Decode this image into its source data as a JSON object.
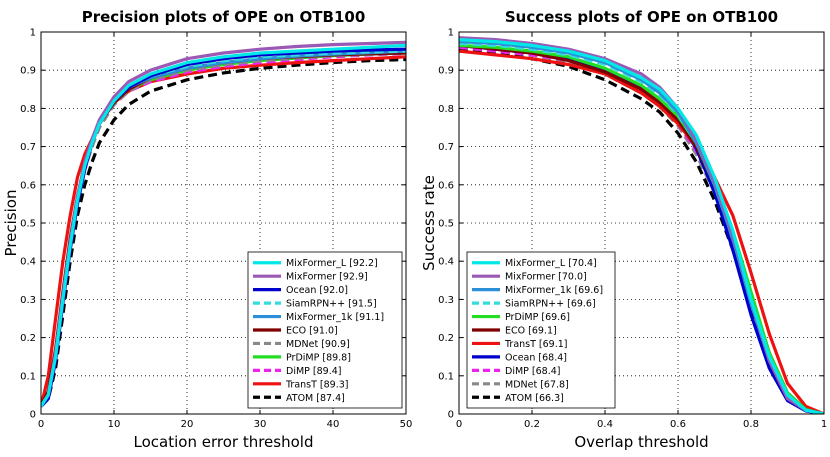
{
  "chart_data": [
    {
      "type": "line",
      "title": "Precision plots of OPE on OTB100",
      "xlabel": "Location error threshold",
      "ylabel": "Precision",
      "xlim": [
        0,
        50
      ],
      "ylim": [
        0,
        1
      ],
      "grid": true,
      "legend_position": "bottom-right",
      "xticks": [
        0,
        10,
        20,
        30,
        40,
        50
      ],
      "xtick_labels": [
        "0",
        "10",
        "20",
        "30",
        "40",
        "50"
      ],
      "yticks": [
        0,
        0.1,
        0.2,
        0.3,
        0.4,
        0.5,
        0.6,
        0.7,
        0.8,
        0.9,
        1
      ],
      "ytick_labels": [
        "0",
        "0.1",
        "0.2",
        "0.3",
        "0.4",
        "0.5",
        "0.6",
        "0.7",
        "0.8",
        "0.9",
        "1"
      ],
      "x": [
        0,
        1,
        2,
        3,
        4,
        5,
        6,
        7,
        8,
        10,
        12,
        15,
        20,
        25,
        30,
        35,
        40,
        45,
        50
      ],
      "series": [
        {
          "name": "MixFormer_L [92.2]",
          "color": "#00e8e8",
          "dash": "solid",
          "values": [
            0.02,
            0.05,
            0.15,
            0.3,
            0.44,
            0.56,
            0.65,
            0.71,
            0.76,
            0.82,
            0.86,
            0.89,
            0.92,
            0.935,
            0.945,
            0.95,
            0.955,
            0.96,
            0.965
          ]
        },
        {
          "name": "MixFormer [92.9]",
          "color": "#9b59b6",
          "dash": "solid",
          "values": [
            0.02,
            0.05,
            0.16,
            0.31,
            0.45,
            0.57,
            0.66,
            0.72,
            0.77,
            0.83,
            0.87,
            0.9,
            0.93,
            0.945,
            0.955,
            0.962,
            0.967,
            0.97,
            0.973
          ]
        },
        {
          "name": "Ocean [92.0]",
          "color": "#0000cc",
          "dash": "solid",
          "values": [
            0.02,
            0.04,
            0.14,
            0.29,
            0.43,
            0.55,
            0.64,
            0.71,
            0.76,
            0.82,
            0.855,
            0.885,
            0.915,
            0.93,
            0.94,
            0.945,
            0.95,
            0.953,
            0.955
          ]
        },
        {
          "name": "SiamRPN++ [91.5]",
          "color": "#33dddd",
          "dash": "dash",
          "values": [
            0.02,
            0.05,
            0.15,
            0.3,
            0.44,
            0.56,
            0.65,
            0.71,
            0.76,
            0.82,
            0.855,
            0.885,
            0.91,
            0.925,
            0.935,
            0.94,
            0.945,
            0.948,
            0.95
          ]
        },
        {
          "name": "MixFormer_1k [91.1]",
          "color": "#2a8fd6",
          "dash": "solid",
          "values": [
            0.02,
            0.05,
            0.15,
            0.3,
            0.44,
            0.56,
            0.65,
            0.71,
            0.76,
            0.82,
            0.855,
            0.88,
            0.905,
            0.92,
            0.93,
            0.937,
            0.942,
            0.946,
            0.95
          ]
        },
        {
          "name": "ECO [91.0]",
          "color": "#800000",
          "dash": "solid",
          "values": [
            0.02,
            0.06,
            0.17,
            0.32,
            0.46,
            0.57,
            0.65,
            0.71,
            0.76,
            0.815,
            0.85,
            0.88,
            0.905,
            0.92,
            0.93,
            0.935,
            0.94,
            0.943,
            0.945
          ]
        },
        {
          "name": "MDNet [90.9]",
          "color": "#888888",
          "dash": "dash",
          "values": [
            0.02,
            0.05,
            0.16,
            0.31,
            0.45,
            0.56,
            0.64,
            0.7,
            0.75,
            0.81,
            0.845,
            0.875,
            0.9,
            0.915,
            0.925,
            0.932,
            0.938,
            0.942,
            0.945
          ]
        },
        {
          "name": "PrDiMP [89.8]",
          "color": "#22dd22",
          "dash": "solid",
          "values": [
            0.02,
            0.05,
            0.15,
            0.3,
            0.44,
            0.56,
            0.65,
            0.71,
            0.76,
            0.815,
            0.85,
            0.875,
            0.9,
            0.915,
            0.925,
            0.932,
            0.938,
            0.942,
            0.945
          ]
        },
        {
          "name": "DiMP [89.4]",
          "color": "#ee22ee",
          "dash": "dash",
          "values": [
            0.02,
            0.05,
            0.15,
            0.3,
            0.44,
            0.56,
            0.65,
            0.71,
            0.76,
            0.81,
            0.845,
            0.87,
            0.895,
            0.91,
            0.92,
            0.928,
            0.935,
            0.94,
            0.944
          ]
        },
        {
          "name": "TransT [89.3]",
          "color": "#ee1111",
          "dash": "solid",
          "values": [
            0.02,
            0.1,
            0.25,
            0.4,
            0.52,
            0.62,
            0.68,
            0.72,
            0.76,
            0.815,
            0.845,
            0.87,
            0.89,
            0.905,
            0.913,
            0.92,
            0.925,
            0.93,
            0.935
          ]
        },
        {
          "name": "ATOM [87.4]",
          "color": "#000000",
          "dash": "dash",
          "values": [
            0.02,
            0.04,
            0.12,
            0.26,
            0.4,
            0.52,
            0.6,
            0.66,
            0.71,
            0.77,
            0.81,
            0.845,
            0.875,
            0.893,
            0.905,
            0.913,
            0.92,
            0.925,
            0.928
          ]
        }
      ]
    },
    {
      "type": "line",
      "title": "Success plots of OPE on OTB100",
      "xlabel": "Overlap threshold",
      "ylabel": "Success rate",
      "xlim": [
        0,
        1
      ],
      "ylim": [
        0,
        1
      ],
      "grid": true,
      "legend_position": "bottom-left",
      "xticks": [
        0,
        0.2,
        0.4,
        0.6,
        0.8,
        1
      ],
      "xtick_labels": [
        "0",
        "0.2",
        "0.4",
        "0.6",
        "0.8",
        "1"
      ],
      "yticks": [
        0,
        0.1,
        0.2,
        0.3,
        0.4,
        0.5,
        0.6,
        0.7,
        0.8,
        0.9,
        1
      ],
      "ytick_labels": [
        "0",
        "0.1",
        "0.2",
        "0.3",
        "0.4",
        "0.5",
        "0.6",
        "0.7",
        "0.8",
        "0.9",
        "1"
      ],
      "x": [
        0,
        0.1,
        0.2,
        0.3,
        0.4,
        0.5,
        0.55,
        0.6,
        0.65,
        0.7,
        0.75,
        0.8,
        0.85,
        0.9,
        0.95,
        1
      ],
      "series": [
        {
          "name": "MixFormer_L [70.4]",
          "color": "#00e8e8",
          "dash": "solid",
          "values": [
            0.98,
            0.975,
            0.965,
            0.95,
            0.925,
            0.88,
            0.85,
            0.8,
            0.73,
            0.62,
            0.48,
            0.3,
            0.15,
            0.05,
            0.01,
            0
          ]
        },
        {
          "name": "MixFormer [70.0]",
          "color": "#9b59b6",
          "dash": "solid",
          "values": [
            0.985,
            0.98,
            0.97,
            0.955,
            0.93,
            0.89,
            0.855,
            0.8,
            0.72,
            0.61,
            0.47,
            0.3,
            0.14,
            0.04,
            0.01,
            0
          ]
        },
        {
          "name": "MixFormer_1k [69.6]",
          "color": "#2a8fd6",
          "dash": "solid",
          "values": [
            0.975,
            0.97,
            0.96,
            0.945,
            0.92,
            0.875,
            0.84,
            0.79,
            0.71,
            0.6,
            0.46,
            0.29,
            0.14,
            0.045,
            0.01,
            0
          ]
        },
        {
          "name": "SiamRPN++ [69.6]",
          "color": "#33dddd",
          "dash": "dash",
          "values": [
            0.97,
            0.965,
            0.955,
            0.94,
            0.915,
            0.87,
            0.835,
            0.785,
            0.71,
            0.6,
            0.46,
            0.3,
            0.15,
            0.05,
            0.01,
            0
          ]
        },
        {
          "name": "PrDiMP [69.6]",
          "color": "#22dd22",
          "dash": "solid",
          "values": [
            0.965,
            0.96,
            0.95,
            0.935,
            0.905,
            0.86,
            0.825,
            0.78,
            0.71,
            0.61,
            0.48,
            0.32,
            0.16,
            0.055,
            0.012,
            0
          ]
        },
        {
          "name": "ECO [69.1]",
          "color": "#800000",
          "dash": "solid",
          "values": [
            0.965,
            0.955,
            0.945,
            0.925,
            0.895,
            0.85,
            0.815,
            0.77,
            0.7,
            0.6,
            0.47,
            0.31,
            0.16,
            0.055,
            0.012,
            0
          ]
        },
        {
          "name": "TransT [69.1]",
          "color": "#ee1111",
          "dash": "solid",
          "values": [
            0.95,
            0.94,
            0.93,
            0.915,
            0.89,
            0.84,
            0.805,
            0.76,
            0.7,
            0.62,
            0.52,
            0.37,
            0.21,
            0.08,
            0.02,
            0
          ]
        },
        {
          "name": "Ocean [68.4]",
          "color": "#0000cc",
          "dash": "solid",
          "values": [
            0.965,
            0.955,
            0.945,
            0.93,
            0.9,
            0.855,
            0.82,
            0.77,
            0.695,
            0.58,
            0.43,
            0.26,
            0.12,
            0.035,
            0.008,
            0
          ]
        },
        {
          "name": "DiMP [68.4]",
          "color": "#ee22ee",
          "dash": "dash",
          "values": [
            0.96,
            0.95,
            0.94,
            0.925,
            0.895,
            0.845,
            0.81,
            0.76,
            0.69,
            0.59,
            0.46,
            0.3,
            0.15,
            0.05,
            0.01,
            0
          ]
        },
        {
          "name": "MDNet [67.8]",
          "color": "#888888",
          "dash": "dash",
          "values": [
            0.96,
            0.95,
            0.94,
            0.92,
            0.89,
            0.84,
            0.805,
            0.755,
            0.68,
            0.58,
            0.45,
            0.29,
            0.14,
            0.045,
            0.01,
            0
          ]
        },
        {
          "name": "ATOM [66.3]",
          "color": "#000000",
          "dash": "dash",
          "values": [
            0.955,
            0.945,
            0.93,
            0.91,
            0.875,
            0.825,
            0.79,
            0.735,
            0.66,
            0.56,
            0.43,
            0.28,
            0.14,
            0.045,
            0.01,
            0
          ]
        }
      ]
    }
  ]
}
